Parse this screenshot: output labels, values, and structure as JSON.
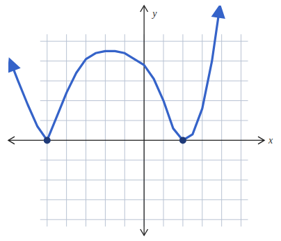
{
  "chart_data": {
    "type": "line",
    "x_label": "x",
    "y_label": "y",
    "xlim": [
      -7,
      6.2
    ],
    "ylim": [
      -4.8,
      6.8
    ],
    "xticks": [
      -5,
      -4,
      -3,
      -2,
      -1,
      0,
      1,
      2,
      3,
      4,
      5
    ],
    "yticks": [
      -4,
      -3,
      -2,
      -1,
      0,
      1,
      2,
      3,
      4,
      5
    ],
    "grid": true,
    "tick_labels": false,
    "series": [
      {
        "type": "line",
        "color": "#3563c9",
        "marker": "arrow",
        "x": [
          -6.9,
          -6.5,
          -6,
          -5.5,
          -5,
          -4.5,
          -4,
          -3.5,
          -3,
          -2.5,
          -2,
          -1.5,
          -1,
          -0.5,
          0,
          0.5,
          1,
          1.5,
          2,
          2.5,
          3,
          3.5,
          3.9
        ],
        "values": [
          4.0,
          3.0,
          1.8,
          0.7,
          0,
          1.2,
          2.4,
          3.4,
          4.1,
          4.4,
          4.5,
          4.5,
          4.4,
          4.1,
          3.8,
          3.1,
          2.0,
          0.6,
          0,
          0.3,
          1.6,
          4.0,
          6.7
        ]
      },
      {
        "type": "scatter",
        "color": "#1f3a78",
        "marker": "circle",
        "x": [
          -5,
          2
        ],
        "values": [
          0,
          0
        ]
      }
    ]
  }
}
